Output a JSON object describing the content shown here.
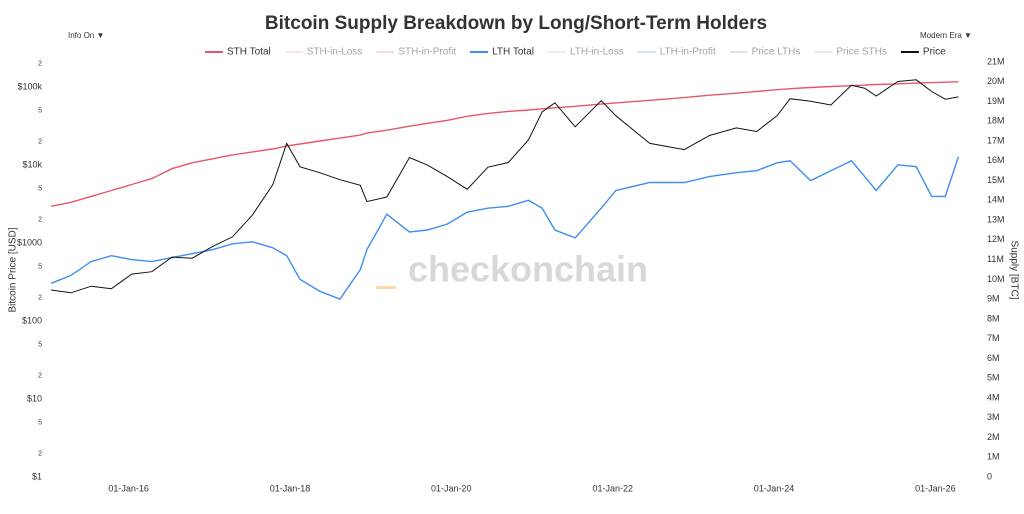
{
  "chart_data": {
    "type": "line",
    "title": "Bitcoin Supply Breakdown by Long/Short-Term Holders",
    "controls": {
      "info": "Info On ▼",
      "era": "Modern Era ▼"
    },
    "watermark": "checkonchain",
    "y_label": "Bitcoin Price [USD]",
    "y2_label": "Supply [BTC]",
    "log_y": true,
    "x": [
      "2015-01-15",
      "2015-04-15",
      "2015-07-15",
      "2015-10-15",
      "2016-01-15",
      "2016-04-15",
      "2016-07-15",
      "2016-10-15",
      "2017-01-15",
      "2017-04-15",
      "2017-07-15",
      "2017-10-15",
      "2017-12-17",
      "2018-02-15",
      "2018-05-15",
      "2018-08-15",
      "2018-11-15",
      "2018-12-15",
      "2019-03-15",
      "2019-06-26",
      "2019-09-15",
      "2019-12-15",
      "2020-03-13",
      "2020-06-15",
      "2020-09-15",
      "2020-12-15",
      "2021-02-15",
      "2021-04-14",
      "2021-07-15",
      "2021-11-10",
      "2022-01-15",
      "2022-06-18",
      "2022-11-21",
      "2023-03-15",
      "2023-07-15",
      "2023-10-15",
      "2024-01-15",
      "2024-03-14",
      "2024-06-15",
      "2024-09-15",
      "2024-12-17",
      "2025-02-15",
      "2025-04-08",
      "2025-07-15",
      "2025-10-06",
      "2025-12-15",
      "2026-02-15",
      "2026-04-15"
    ],
    "xlim": [
      "2015-01-01",
      "2026-05-15"
    ],
    "xticks": [
      {
        "value": "2016-01-01",
        "label": "01-Jan-16"
      },
      {
        "value": "2018-01-01",
        "label": "01-Jan-18"
      },
      {
        "value": "2020-01-01",
        "label": "01-Jan-20"
      },
      {
        "value": "2022-01-01",
        "label": "01-Jan-22"
      },
      {
        "value": "2024-01-01",
        "label": "01-Jan-24"
      },
      {
        "value": "2026-01-01",
        "label": "01-Jan-26"
      }
    ],
    "ylim": [
      1,
      210000
    ],
    "yticks": [
      {
        "value": 1,
        "label": "$1"
      },
      2,
      5,
      {
        "value": 10,
        "label": "$10"
      },
      {
        "value": 20,
        "label": "2"
      },
      {
        "value": 50,
        "label": "5"
      },
      {
        "value": 100,
        "label": "$100"
      },
      {
        "value": 200,
        "label": "2"
      },
      {
        "value": 500,
        "label": "5"
      },
      {
        "value": 1000,
        "label": "$1000"
      },
      {
        "value": 2000,
        "label": "2"
      },
      {
        "value": 5000,
        "label": "5"
      },
      {
        "value": 10000,
        "label": "$10k"
      },
      {
        "value": 20000,
        "label": "2"
      },
      {
        "value": 50000,
        "label": "5"
      },
      {
        "value": 100000,
        "label": "$100k"
      },
      {
        "value": 200000,
        "label": "2"
      }
    ],
    "y2lim": [
      0,
      21000000
    ],
    "y2ticks": [
      0,
      {
        "value": 1000000,
        "label": "1M"
      },
      {
        "value": 2000000,
        "label": "2M"
      },
      {
        "value": 3000000,
        "label": "3M"
      },
      {
        "value": 4000000,
        "label": "4M"
      },
      {
        "value": 5000000,
        "label": "5M"
      },
      {
        "value": 6000000,
        "label": "6M"
      },
      {
        "value": 7000000,
        "label": "7M"
      },
      {
        "value": 8000000,
        "label": "8M"
      },
      {
        "value": 9000000,
        "label": "9M"
      },
      {
        "value": 10000000,
        "label": "10M"
      },
      {
        "value": 11000000,
        "label": "11M"
      },
      {
        "value": 12000000,
        "label": "12M"
      },
      {
        "value": 13000000,
        "label": "13M"
      },
      {
        "value": 14000000,
        "label": "14M"
      },
      {
        "value": 15000000,
        "label": "15M"
      },
      {
        "value": 16000000,
        "label": "16M"
      },
      {
        "value": 17000000,
        "label": "17M"
      },
      {
        "value": 18000000,
        "label": "18M"
      },
      {
        "value": 19000000,
        "label": "19M"
      },
      {
        "value": 20000000,
        "label": "20M"
      },
      {
        "value": 21000000,
        "label": "21M"
      }
    ],
    "series": [
      {
        "name": "STH Total",
        "color": "#e8566c",
        "axis": "y2",
        "values": [
          13700000,
          13900000,
          14200000,
          14500000,
          14800000,
          15100000,
          15600000,
          15900000,
          16100000,
          16300000,
          16450000,
          16600000,
          16750000,
          16850000,
          17000000,
          17150000,
          17300000,
          17400000,
          17550000,
          17750000,
          17900000,
          18050000,
          18250000,
          18400000,
          18500000,
          18570000,
          18630000,
          18680000,
          18760000,
          18870000,
          18930000,
          19060000,
          19200000,
          19320000,
          19420000,
          19510000,
          19600000,
          19650000,
          19710000,
          19760000,
          19800000,
          19830000,
          19860000,
          19890000,
          19930000,
          19960000,
          19980000,
          20000000
        ]
      },
      {
        "name": "STH-in-Loss",
        "color": "#f7c6cf",
        "visible": false
      },
      {
        "name": "STH-in-Profit",
        "color": "#f4a7b5",
        "visible": false
      },
      {
        "name": "LTH Total",
        "color": "#3d8ef0",
        "axis": "y2",
        "values": [
          9800000,
          10200000,
          10900000,
          11200000,
          11000000,
          10900000,
          11100000,
          11300000,
          11500000,
          11800000,
          11900000,
          11600000,
          11200000,
          10000000,
          9400000,
          9000000,
          10500000,
          11500000,
          13300000,
          12400000,
          12500000,
          12800000,
          13400000,
          13600000,
          13700000,
          14000000,
          13600000,
          12500000,
          12100000,
          13600000,
          14500000,
          14900000,
          14900000,
          15200000,
          15400000,
          15500000,
          15900000,
          16000000,
          15000000,
          15500000,
          16000000,
          15200000,
          14500000,
          15800000,
          15700000,
          14200000,
          14200000,
          16200000
        ]
      },
      {
        "name": "LTH-in-Loss",
        "color": "#c6dbf7",
        "visible": false
      },
      {
        "name": "LTH-in-Profit",
        "color": "#9cc3f0",
        "visible": false
      },
      {
        "name": "Price LTHs",
        "color": "#bbbbbb",
        "visible": false
      },
      {
        "name": "Price STHs",
        "color": "#cccccc",
        "visible": false
      },
      {
        "name": "Price",
        "color": "#111111",
        "axis": "y",
        "values": [
          250,
          230,
          280,
          260,
          400,
          430,
          660,
          640,
          900,
          1200,
          2300,
          5600,
          19000,
          9500,
          8000,
          6500,
          5500,
          3400,
          3900,
          12500,
          10000,
          7100,
          4900,
          9400,
          10800,
          21000,
          48000,
          63000,
          31000,
          67000,
          43000,
          19000,
          15800,
          24000,
          30000,
          27000,
          43000,
          71000,
          66000,
          59000,
          106000,
          97000,
          77000,
          118000,
          124000,
          88000,
          70000,
          75000
        ]
      }
    ]
  }
}
